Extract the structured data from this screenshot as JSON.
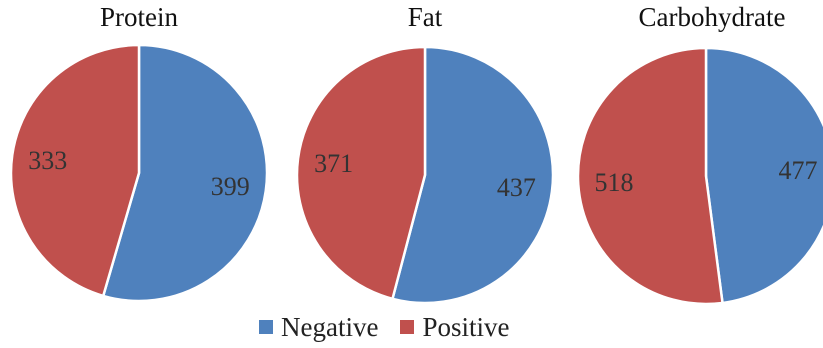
{
  "colors": {
    "negative": "#4f81bd",
    "positive": "#c0504d"
  },
  "legend": [
    {
      "label": "Negative",
      "color": "#4f81bd"
    },
    {
      "label": "Positive",
      "color": "#c0504d"
    }
  ],
  "chart_data": [
    {
      "type": "pie",
      "title": "Protein",
      "series": [
        {
          "name": "Negative",
          "value": 399
        },
        {
          "name": "Positive",
          "value": 333
        }
      ],
      "legend_position": "bottom"
    },
    {
      "type": "pie",
      "title": "Fat",
      "series": [
        {
          "name": "Negative",
          "value": 437
        },
        {
          "name": "Positive",
          "value": 371
        }
      ],
      "legend_position": "bottom"
    },
    {
      "type": "pie",
      "title": "Carbohydrate",
      "series": [
        {
          "name": "Negative",
          "value": 477
        },
        {
          "name": "Positive",
          "value": 518
        }
      ],
      "legend_position": "bottom"
    }
  ]
}
